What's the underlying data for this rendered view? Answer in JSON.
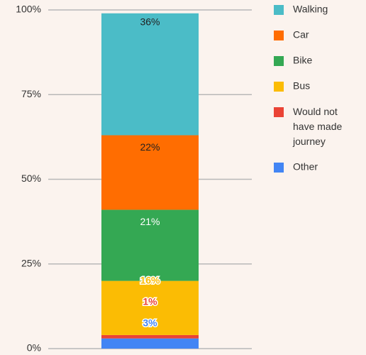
{
  "chart_data": {
    "type": "stacked_bar",
    "categories": [
      null
    ],
    "series": [
      {
        "name": "Walking",
        "color": "#4bbcc7",
        "values": [
          36
        ],
        "value_labels": [
          "36%"
        ]
      },
      {
        "name": "Car",
        "color": "#ff6d01",
        "values": [
          22
        ],
        "value_labels": [
          "22%"
        ]
      },
      {
        "name": "Bike",
        "color": "#34a853",
        "values": [
          21
        ],
        "value_labels": [
          "21%"
        ]
      },
      {
        "name": "Bus",
        "color": "#fbbc04",
        "values": [
          16
        ],
        "value_labels": [
          "16%"
        ]
      },
      {
        "name": "Would not have made journey",
        "color": "#ea4335",
        "values": [
          1
        ],
        "value_labels": [
          "1%"
        ]
      },
      {
        "name": "Other",
        "color": "#4285f4",
        "values": [
          3
        ],
        "value_labels": [
          "3%"
        ]
      }
    ],
    "ylim": [
      0,
      100
    ],
    "yticks": [
      {
        "value": 0,
        "label": "0%"
      },
      {
        "value": 25,
        "label": "25%"
      },
      {
        "value": 50,
        "label": "50%"
      },
      {
        "value": 75,
        "label": "75%"
      },
      {
        "value": 100,
        "label": "100%"
      }
    ],
    "grid": true,
    "legend": "right"
  }
}
